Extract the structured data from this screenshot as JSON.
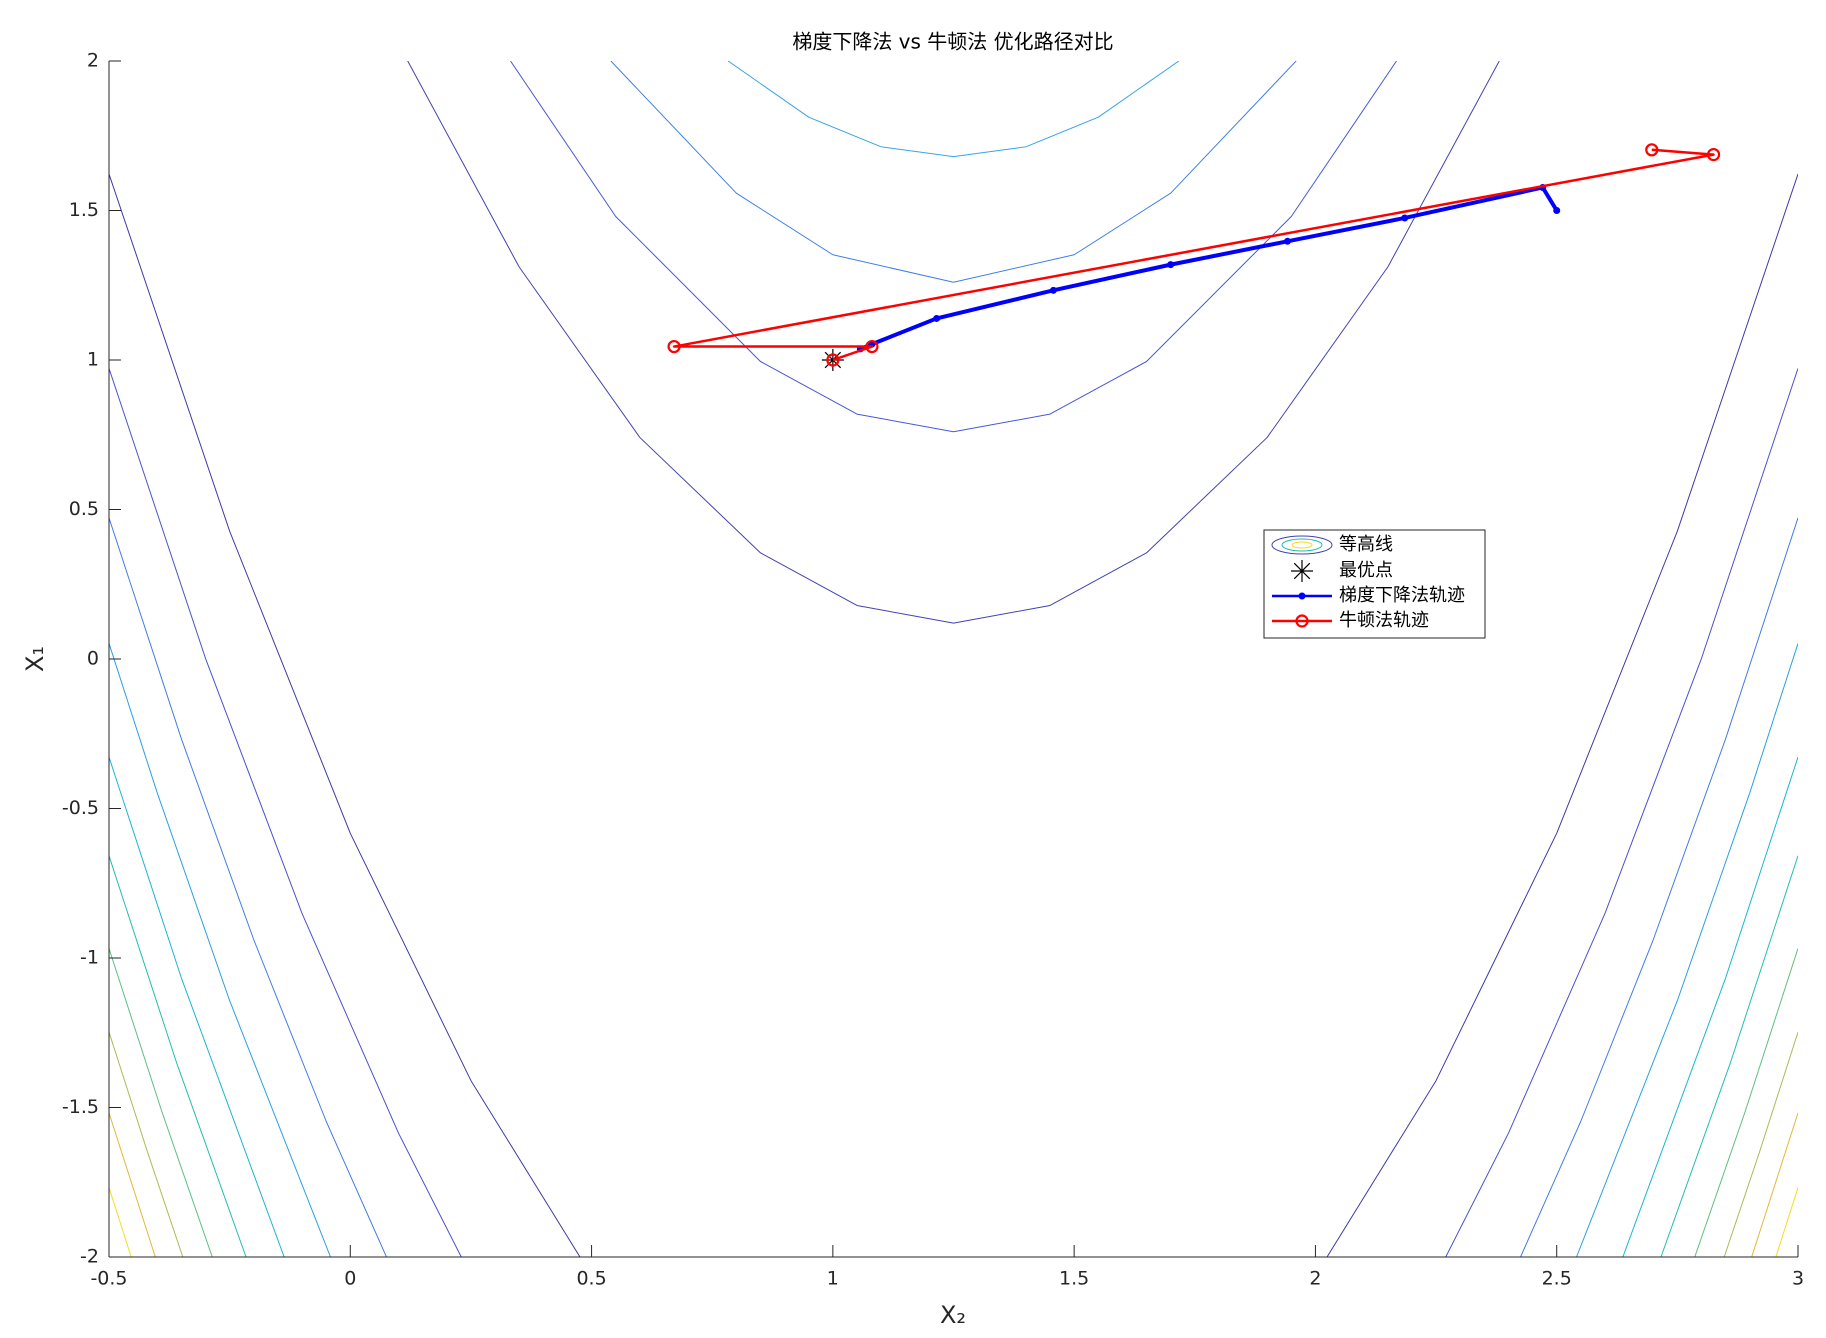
{
  "chart_data": {
    "type": "contour",
    "title": "梯度下降法 vs 牛顿法 优化路径对比",
    "xlabel": "X₂",
    "ylabel": "X₁",
    "xlim": [
      -0.5,
      3
    ],
    "ylim": [
      -2,
      2
    ],
    "xticks": [
      -0.5,
      0,
      0.5,
      1,
      1.5,
      2,
      2.5,
      3
    ],
    "yticks": [
      -2,
      -1.5,
      -1,
      -0.5,
      0,
      0.5,
      1,
      1.5,
      2
    ],
    "contours": {
      "name": "等高线",
      "lines": [
        {
          "color": "#38a3e6",
          "x": [
            0.783,
            0.95,
            1.1,
            1.25,
            1.4,
            1.55,
            1.717
          ],
          "y": [
            2,
            1.812,
            1.713,
            1.68,
            1.713,
            1.812,
            2
          ]
        },
        {
          "color": "#3d80e6",
          "x": [
            0.54,
            0.8,
            1.0,
            1.25,
            1.5,
            1.7,
            1.96
          ],
          "y": [
            2,
            1.558,
            1.352,
            1.26,
            1.352,
            1.558,
            2
          ]
        },
        {
          "color": "#4658d8",
          "x": [
            0.332,
            0.55,
            0.85,
            1.05,
            1.25,
            1.45,
            1.65,
            1.95,
            2.168
          ],
          "y": [
            2,
            1.48,
            0.995,
            0.819,
            0.76,
            0.819,
            0.995,
            1.48,
            2
          ]
        },
        {
          "color": "#4242b0",
          "x": [
            0.119,
            0.35,
            0.6,
            0.85,
            1.05,
            1.25,
            1.45,
            1.65,
            1.9,
            2.15,
            2.381
          ],
          "y": [
            2,
            1.311,
            0.741,
            0.355,
            0.179,
            0.12,
            0.179,
            0.355,
            0.741,
            1.311,
            2
          ]
        },
        {
          "color": "#3d3aa6",
          "x": [
            -0.5,
            -0.25,
            0.0,
            0.25,
            0.476
          ],
          "y": [
            1.622,
            0.4275,
            -0.583,
            -1.41,
            -2
          ]
        },
        {
          "color": "#3d3aa6",
          "x": [
            3,
            2.75,
            2.5,
            2.25,
            2.024
          ],
          "y": [
            1.622,
            0.4275,
            -0.583,
            -1.41,
            -2
          ]
        },
        {
          "color": "#4a50d2",
          "x": [
            -0.5,
            -0.3,
            -0.1,
            0.1,
            0.23
          ],
          "y": [
            0.972,
            0.002,
            -0.851,
            -1.586,
            -2
          ]
        },
        {
          "color": "#4a50d2",
          "x": [
            3,
            2.8,
            2.6,
            2.4,
            2.27
          ],
          "y": [
            0.972,
            0.002,
            -0.851,
            -1.586,
            -2
          ]
        },
        {
          "color": "#3f7ce8",
          "x": [
            -0.5,
            -0.35,
            -0.2,
            -0.05,
            0.075
          ],
          "y": [
            0.472,
            -0.267,
            -0.939,
            -1.546,
            -2
          ]
        },
        {
          "color": "#3f7ce8",
          "x": [
            3,
            2.85,
            2.7,
            2.55,
            2.425
          ],
          "y": [
            0.472,
            -0.267,
            -0.939,
            -1.546,
            -2
          ]
        },
        {
          "color": "#2a9ee6",
          "x": [
            -0.5,
            -0.4,
            -0.25,
            -0.041
          ],
          "y": [
            0.052,
            -0.448,
            -1.1425,
            -2
          ]
        },
        {
          "color": "#2a9ee6",
          "x": [
            3,
            2.9,
            2.75,
            2.541
          ],
          "y": [
            0.052,
            -0.448,
            -1.1425,
            -2
          ]
        },
        {
          "color": "#1ab4d2",
          "x": [
            -0.5,
            -0.35,
            -0.137
          ],
          "y": [
            -0.328,
            -1.067,
            -2
          ]
        },
        {
          "color": "#1ab4d2",
          "x": [
            3,
            2.85,
            2.637
          ],
          "y": [
            -0.328,
            -1.067,
            -2
          ]
        },
        {
          "color": "#22bcb0",
          "x": [
            -0.5,
            -0.36,
            -0.216
          ],
          "y": [
            -0.658,
            -1.35,
            -2
          ]
        },
        {
          "color": "#22bcb0",
          "x": [
            3,
            2.86,
            2.716
          ],
          "y": [
            -0.658,
            -1.35,
            -2
          ]
        },
        {
          "color": "#5cbf80",
          "x": [
            -0.5,
            -0.39,
            -0.286
          ],
          "y": [
            -0.968,
            -1.516,
            -2
          ]
        },
        {
          "color": "#5cbf80",
          "x": [
            3,
            2.89,
            2.786
          ],
          "y": [
            -0.968,
            -1.516,
            -2
          ]
        },
        {
          "color": "#a8bb55",
          "x": [
            -0.5,
            -0.42,
            -0.347
          ],
          "y": [
            -1.248,
            -1.65,
            -2
          ]
        },
        {
          "color": "#a8bb55",
          "x": [
            3,
            2.92,
            2.847
          ],
          "y": [
            -1.248,
            -1.65,
            -2
          ]
        },
        {
          "color": "#e0b83c",
          "x": [
            -0.5,
            -0.404
          ],
          "y": [
            -1.518,
            -2
          ]
        },
        {
          "color": "#e0b83c",
          "x": [
            3,
            2.904
          ],
          "y": [
            -1.518,
            -2
          ]
        },
        {
          "color": "#f4dc22",
          "x": [
            -0.5,
            -0.454
          ],
          "y": [
            -1.768,
            -2
          ]
        },
        {
          "color": "#f4dc22",
          "x": [
            3,
            2.954
          ],
          "y": [
            -1.768,
            -2
          ]
        }
      ]
    },
    "series": [
      {
        "name": "最优点",
        "color": "#000000",
        "marker": "star",
        "x": [
          1
        ],
        "y": [
          1
        ]
      },
      {
        "name": "梯度下降法轨迹",
        "color": "#0000ff",
        "marker": "dot",
        "x": [
          2.5,
          2.471,
          2.185,
          1.942,
          1.7,
          1.457,
          1.215,
          1.081,
          1.057
        ],
        "y": [
          1.5,
          1.577,
          1.475,
          1.397,
          1.319,
          1.233,
          1.139,
          1.053,
          1.037
        ]
      },
      {
        "name": "牛顿法轨迹",
        "color": "#ff0000",
        "marker": "circle",
        "x": [
          2.697,
          2.825,
          0.671,
          1.081,
          1.0
        ],
        "y": [
          1.703,
          1.687,
          1.045,
          1.045,
          1.0
        ]
      }
    ]
  }
}
